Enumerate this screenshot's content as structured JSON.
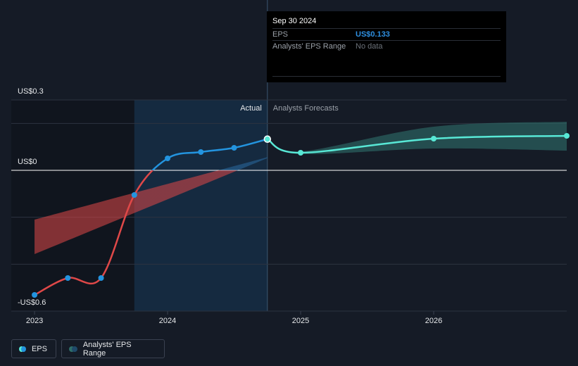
{
  "tooltip": {
    "date": "Sep 30 2024",
    "rows": [
      {
        "label": "EPS",
        "value": "US$0.133"
      },
      {
        "label": "Analysts' EPS Range",
        "value": "No data"
      }
    ]
  },
  "chart_data": {
    "type": "line",
    "region_labels": {
      "actual": "Actual",
      "forecast": "Analysts Forecasts"
    },
    "highlight_xlim": [
      2023.75,
      2024.75
    ],
    "xlim": [
      2022.825,
      2027
    ],
    "xticks": [
      2023,
      2024,
      2025,
      2026
    ],
    "ylim": [
      -0.6,
      0.3
    ],
    "yticks": [
      {
        "value": -0.6,
        "label": "-US$0.6"
      },
      {
        "value": 0,
        "label": "US$0"
      },
      {
        "value": 0.3,
        "label": "US$0.3"
      }
    ],
    "grid_values": [
      -0.4,
      -0.2,
      0.2
    ],
    "series": [
      {
        "name": "EPS",
        "color": "#2394df",
        "negative_color": "#e04848",
        "x": [
          2023.0,
          2023.25,
          2023.5,
          2023.75,
          2024.0,
          2024.25,
          2024.5,
          2024.75
        ],
        "values": [
          -0.531,
          -0.459,
          -0.459,
          -0.105,
          0.051,
          0.078,
          0.096,
          0.133
        ],
        "forecast_color": "#58e8d6",
        "forecast_x": [
          2024.75,
          2025.0,
          2026.0,
          2027.0
        ],
        "forecast_values": [
          0.133,
          0.075,
          0.135,
          0.147
        ]
      },
      {
        "name": "Analysts' EPS Range",
        "color": "#2f6f6a",
        "x": [
          2024.75,
          2025.0,
          2026.0,
          2027.0
        ],
        "low": [
          0.133,
          0.07,
          0.093,
          0.084
        ],
        "high": [
          0.133,
          0.08,
          0.186,
          0.207
        ],
        "past_color": "#e04848",
        "past_positive_color": "#2a6aa0",
        "past_x": [
          2023.0,
          2024.75
        ],
        "past_low": [
          -0.357,
          0.052
        ],
        "past_high": [
          -0.21,
          0.056
        ]
      }
    ]
  }
}
